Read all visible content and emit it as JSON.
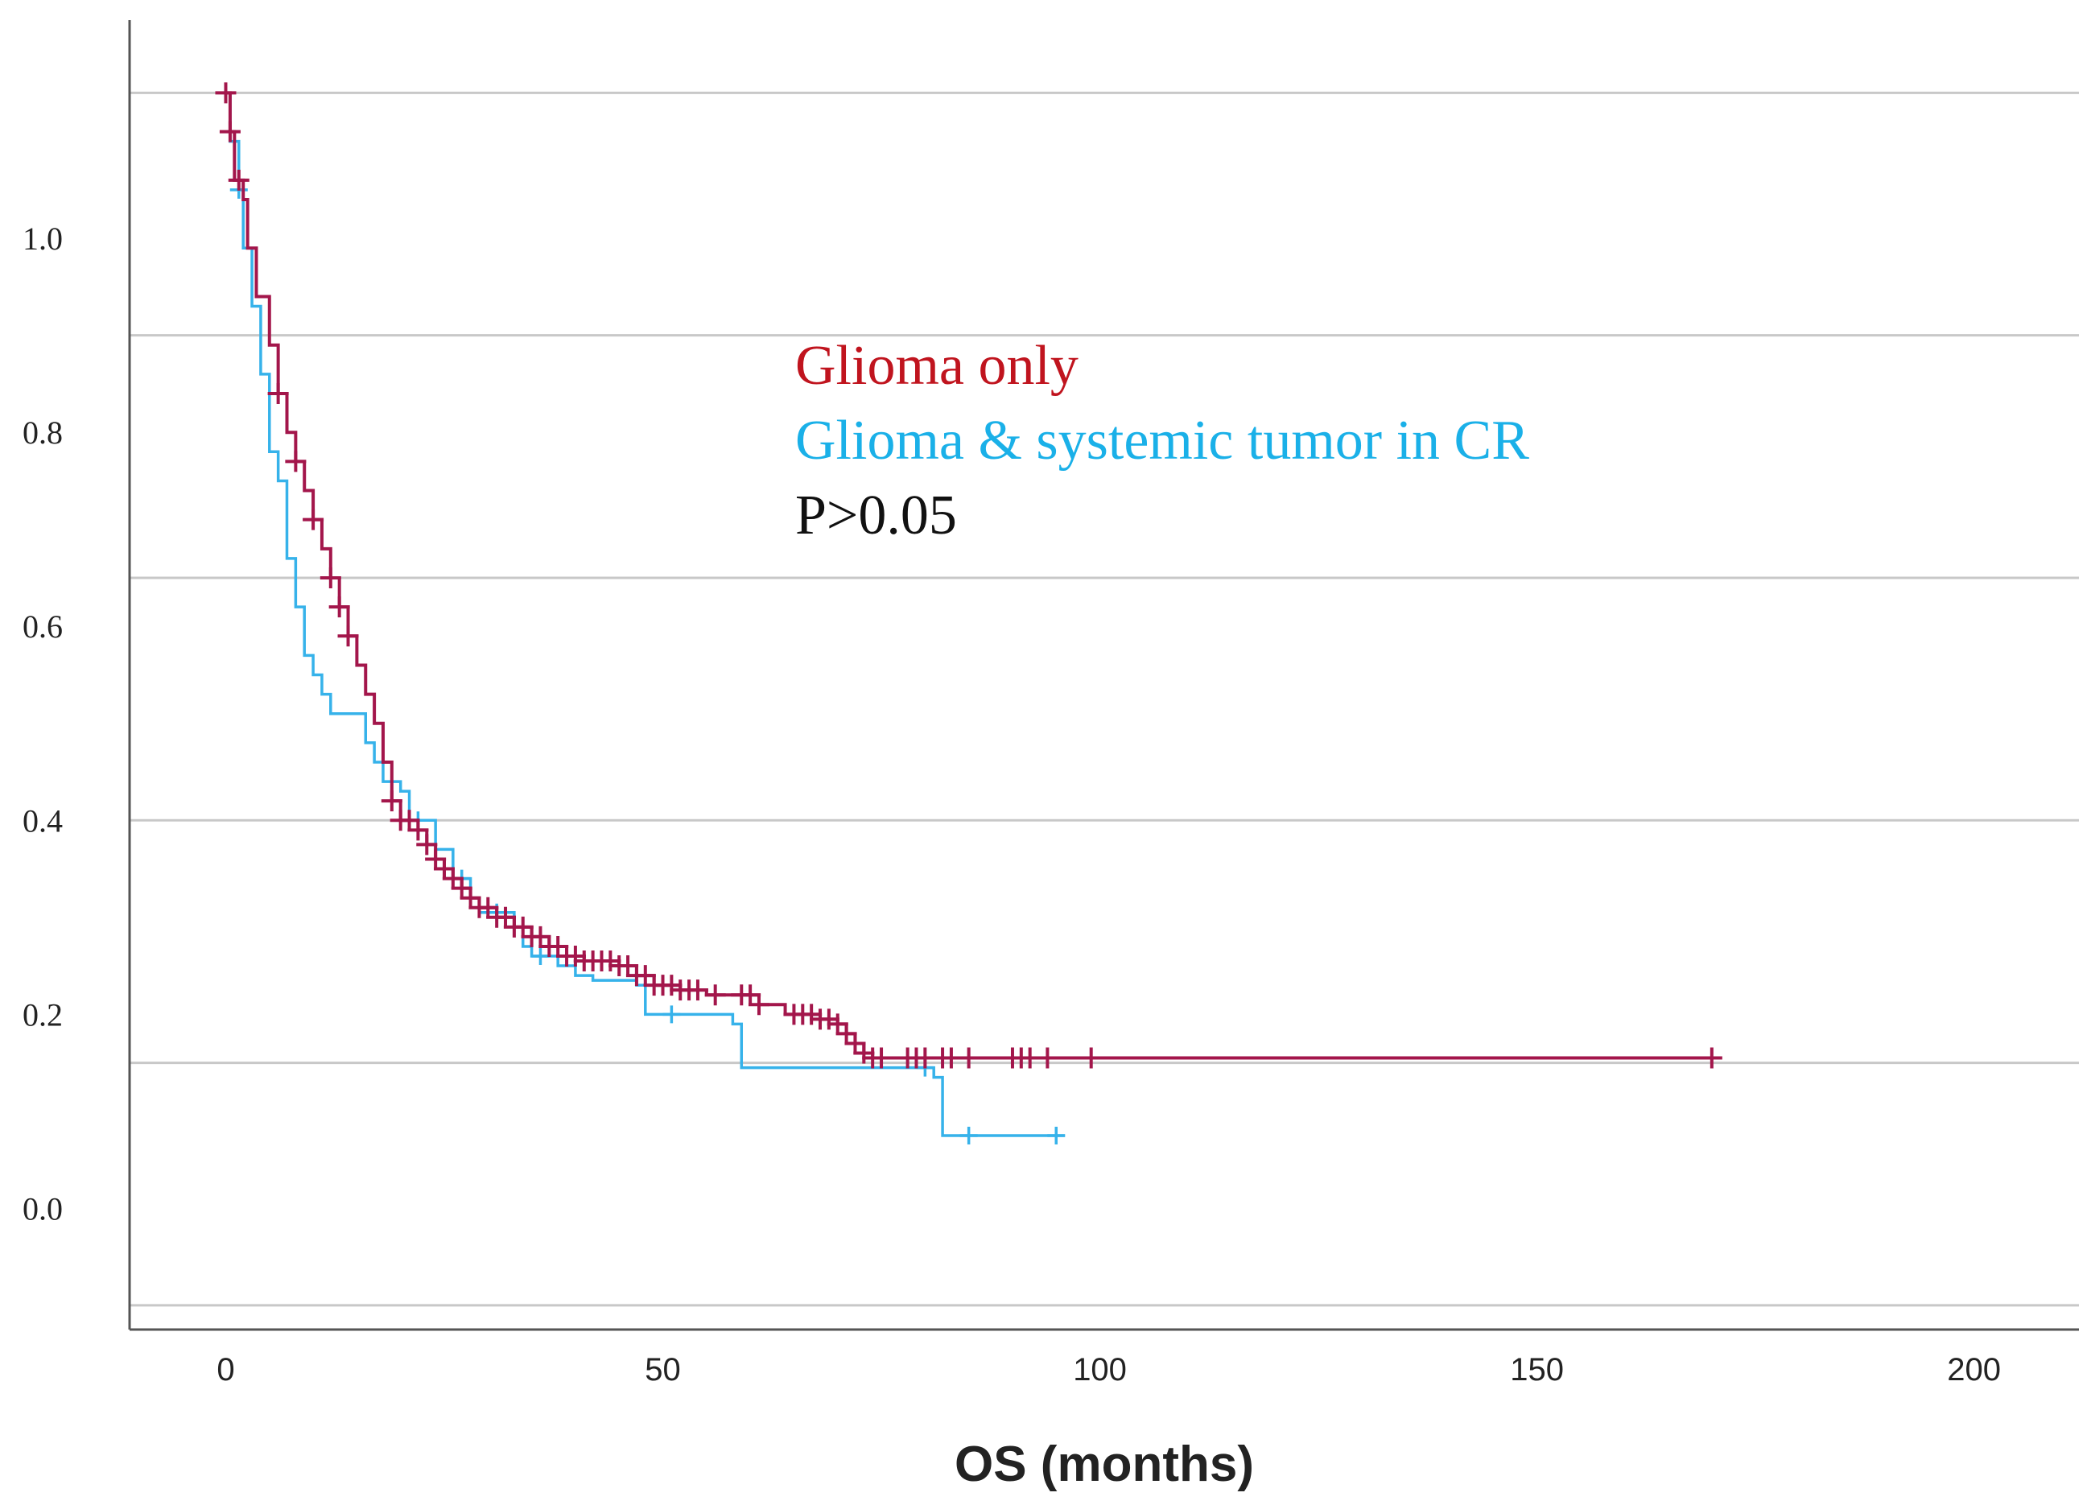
{
  "chart_data": {
    "type": "line",
    "subtype": "kaplan-meier",
    "title": "",
    "xlabel": "OS (months)",
    "ylabel": "",
    "xlim": [
      -11,
      212
    ],
    "ylim": [
      -0.125,
      1.225
    ],
    "x_ticks": [
      0,
      50,
      100,
      150,
      200
    ],
    "x_tick_labels": [
      "0",
      "50",
      "100",
      "150",
      "200"
    ],
    "y_ticks": [
      0.0,
      0.2,
      0.4,
      0.6,
      0.8,
      1.0
    ],
    "y_tick_labels": [
      "0.0",
      "0.2",
      "0.4",
      "0.6",
      "0.8",
      "1.0"
    ],
    "gridlines_y": [
      -0.1,
      0.15,
      0.4,
      0.65,
      0.9,
      1.15
    ],
    "grid": true,
    "legend": {
      "position": "center",
      "entries": [
        {
          "text": "Glioma only",
          "color": "#c0141e"
        },
        {
          "text": "Glioma & systemic tumor in CR",
          "color": "#1ab0e8"
        },
        {
          "text": "P>0.05",
          "color": "#111111"
        }
      ]
    },
    "series": [
      {
        "name": "Glioma only",
        "color": "#a3164b",
        "steps": [
          [
            0,
            1.15
          ],
          [
            0.5,
            1.11
          ],
          [
            1,
            1.06
          ],
          [
            2,
            1.04
          ],
          [
            2.5,
            0.99
          ],
          [
            3.5,
            0.94
          ],
          [
            5,
            0.89
          ],
          [
            6,
            0.84
          ],
          [
            7,
            0.8
          ],
          [
            8,
            0.77
          ],
          [
            9,
            0.74
          ],
          [
            10,
            0.71
          ],
          [
            11,
            0.68
          ],
          [
            12,
            0.65
          ],
          [
            13,
            0.62
          ],
          [
            14,
            0.59
          ],
          [
            15,
            0.56
          ],
          [
            16,
            0.53
          ],
          [
            17,
            0.5
          ],
          [
            18,
            0.46
          ],
          [
            19,
            0.42
          ],
          [
            20,
            0.4
          ],
          [
            22,
            0.39
          ],
          [
            23,
            0.375
          ],
          [
            24,
            0.36
          ],
          [
            25,
            0.35
          ],
          [
            26,
            0.34
          ],
          [
            27,
            0.33
          ],
          [
            28,
            0.32
          ],
          [
            29,
            0.31
          ],
          [
            31,
            0.3
          ],
          [
            33,
            0.29
          ],
          [
            35,
            0.28
          ],
          [
            37,
            0.27
          ],
          [
            39,
            0.26
          ],
          [
            41,
            0.255
          ],
          [
            45,
            0.25
          ],
          [
            47,
            0.24
          ],
          [
            49,
            0.23
          ],
          [
            52,
            0.225
          ],
          [
            55,
            0.22
          ],
          [
            61,
            0.21
          ],
          [
            64,
            0.2
          ],
          [
            68,
            0.195
          ],
          [
            70,
            0.19
          ],
          [
            71,
            0.18
          ],
          [
            72,
            0.17
          ],
          [
            73,
            0.16
          ],
          [
            74,
            0.155
          ],
          [
            171,
            0.155
          ]
        ],
        "censored": [
          0,
          0.5,
          1.5,
          6,
          8,
          10,
          12,
          13,
          14,
          19,
          20,
          21,
          22,
          23,
          24,
          25,
          26,
          27,
          28,
          29,
          30,
          31,
          32,
          33,
          34,
          35,
          36,
          37,
          38,
          39,
          40,
          41,
          42,
          43,
          44,
          45,
          46,
          47,
          48,
          49,
          50,
          51,
          52,
          53,
          54,
          56,
          59,
          60,
          61,
          65,
          66,
          67,
          68,
          69,
          70,
          71,
          72,
          73,
          74,
          75,
          78,
          79,
          80,
          82,
          83,
          85,
          90,
          91,
          92,
          94,
          99,
          170
        ]
      },
      {
        "name": "Glioma & systemic tumor in CR",
        "color": "#36b2ea",
        "steps": [
          [
            0,
            1.15
          ],
          [
            0.5,
            1.1
          ],
          [
            1.5,
            1.05
          ],
          [
            2,
            0.99
          ],
          [
            3,
            0.93
          ],
          [
            4,
            0.86
          ],
          [
            5,
            0.78
          ],
          [
            6,
            0.75
          ],
          [
            7,
            0.67
          ],
          [
            8,
            0.62
          ],
          [
            9,
            0.57
          ],
          [
            10,
            0.55
          ],
          [
            11,
            0.53
          ],
          [
            12,
            0.51
          ],
          [
            16,
            0.48
          ],
          [
            17,
            0.46
          ],
          [
            18,
            0.44
          ],
          [
            20,
            0.43
          ],
          [
            21,
            0.4
          ],
          [
            24,
            0.37
          ],
          [
            26,
            0.34
          ],
          [
            28,
            0.32
          ],
          [
            29,
            0.305
          ],
          [
            33,
            0.29
          ],
          [
            34,
            0.27
          ],
          [
            35,
            0.26
          ],
          [
            38,
            0.25
          ],
          [
            40,
            0.24
          ],
          [
            42,
            0.235
          ],
          [
            47,
            0.23
          ],
          [
            48,
            0.2
          ],
          [
            58,
            0.19
          ],
          [
            59,
            0.145
          ],
          [
            81,
            0.135
          ],
          [
            82,
            0.075
          ],
          [
            96,
            0.075
          ]
        ],
        "censored": [
          1.5,
          22,
          27,
          31,
          36,
          51,
          80,
          85,
          95
        ]
      }
    ]
  }
}
